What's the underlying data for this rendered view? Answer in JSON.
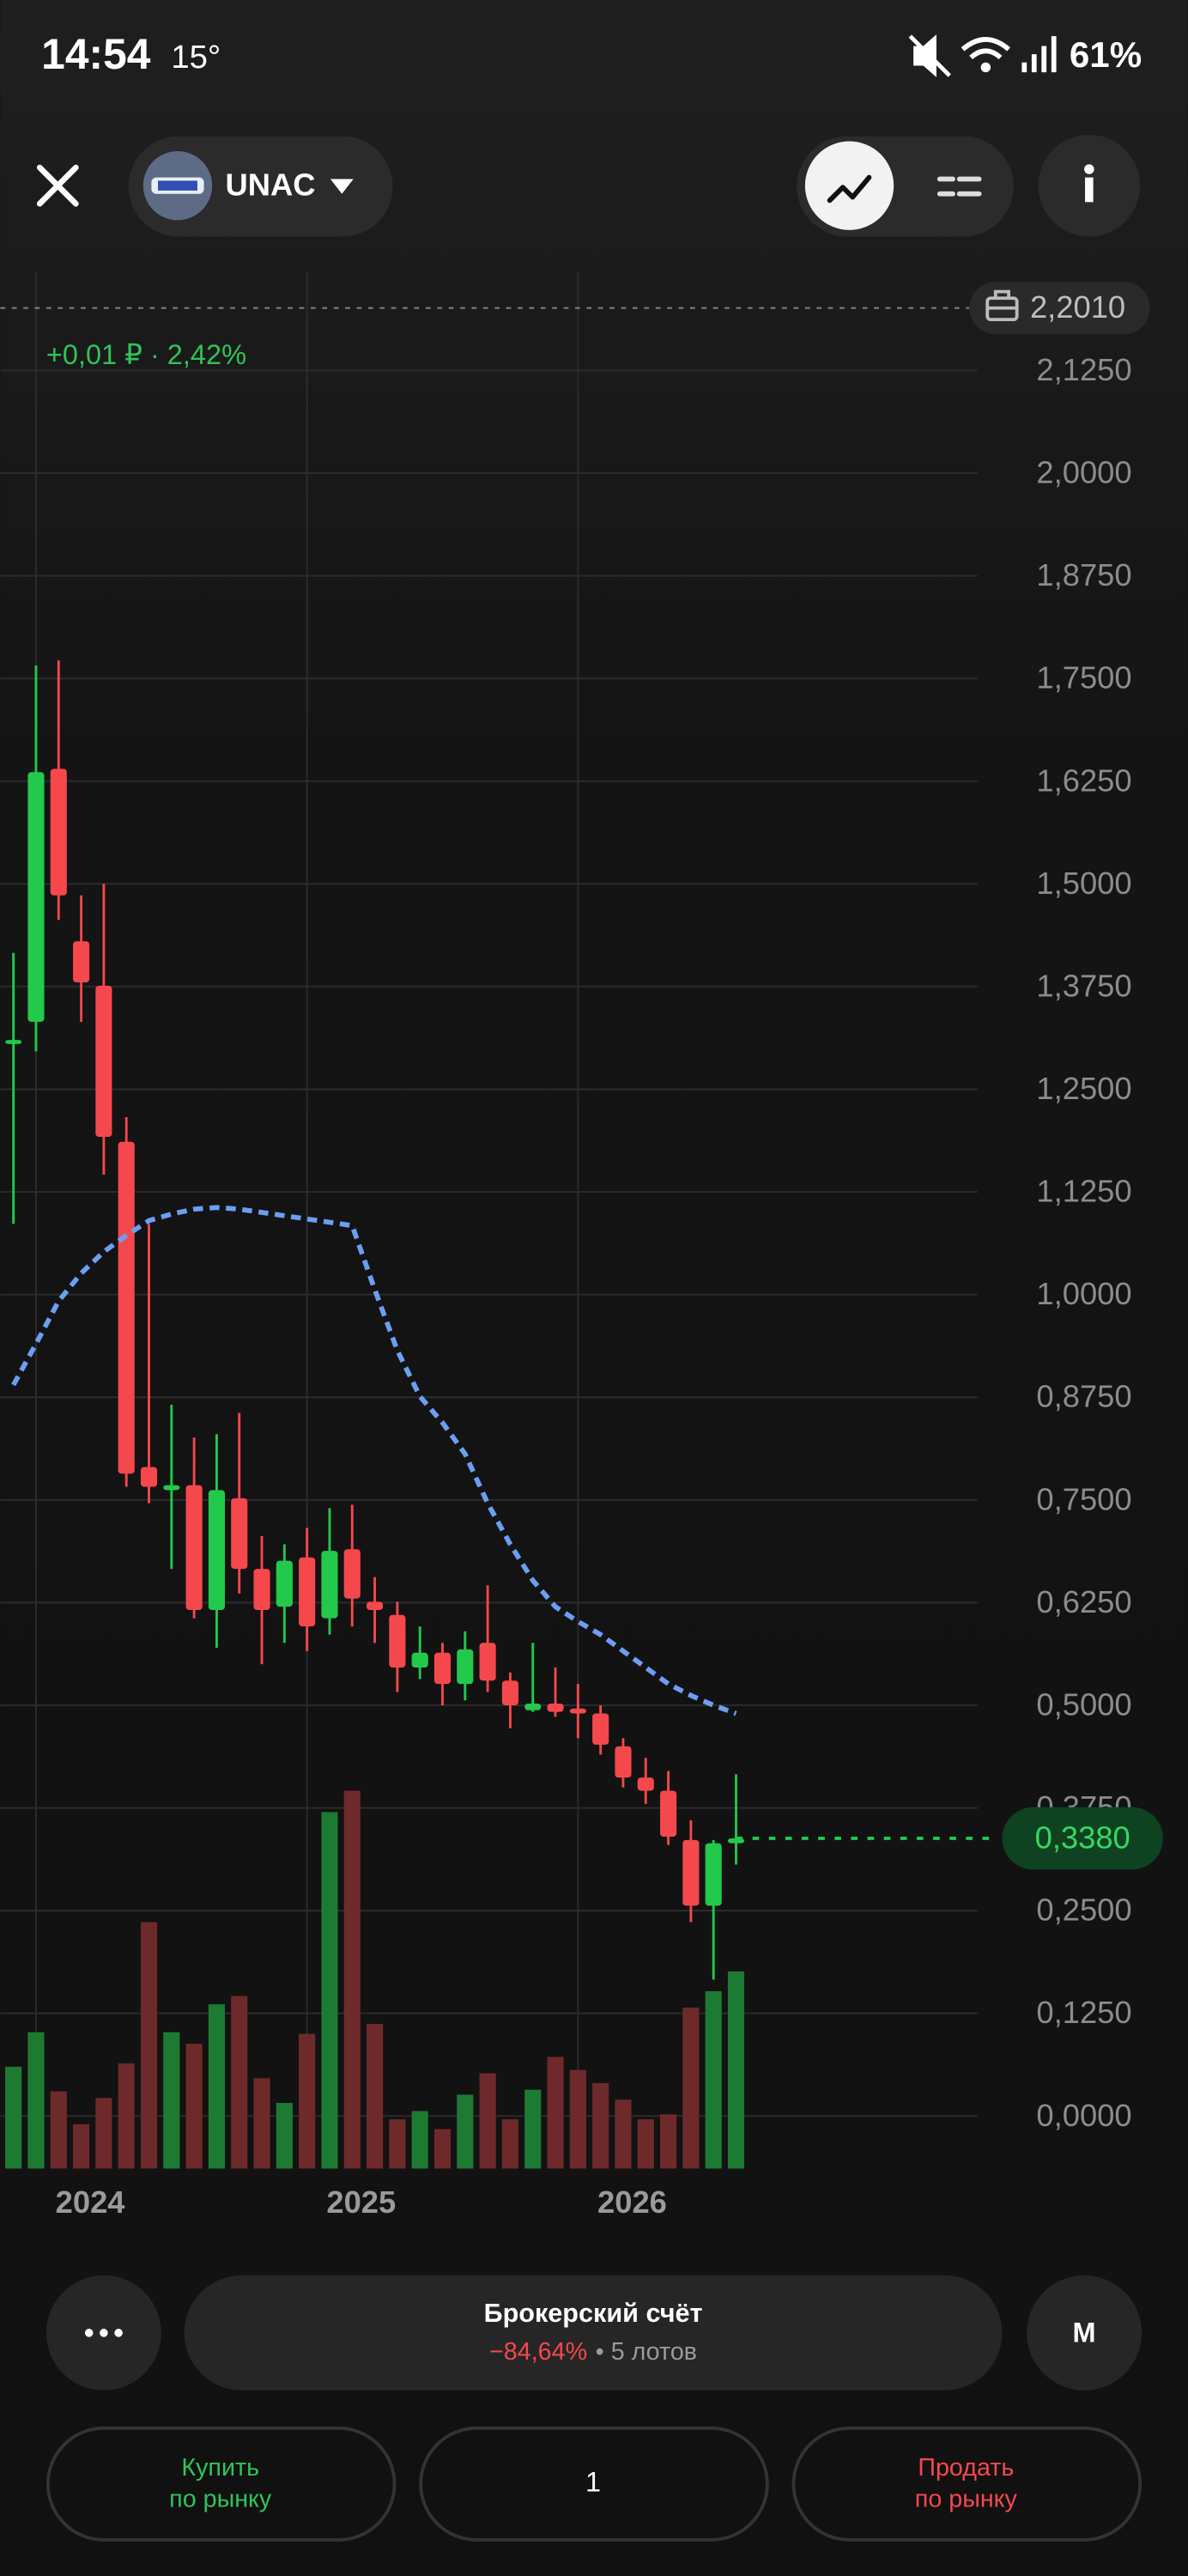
{
  "status_bar": {
    "time": "14:54",
    "temperature": "15°",
    "battery": "61%"
  },
  "header": {
    "ticker": "UNAC"
  },
  "chart_data": {
    "type": "candlestick",
    "change_label": "+0,01 ₽ · 2,42%",
    "categories": [
      null,
      "2024",
      null,
      null,
      null,
      null,
      null,
      null,
      null,
      null,
      null,
      null,
      null,
      "2025",
      null,
      null,
      null,
      null,
      null,
      null,
      null,
      null,
      null,
      null,
      null,
      "2026",
      null,
      null,
      null,
      null,
      null,
      null,
      null
    ],
    "open": [
      1.305,
      1.332,
      1.64,
      1.43,
      1.376,
      1.186,
      0.79,
      0.762,
      0.768,
      0.616,
      0.752,
      0.666,
      0.62,
      0.68,
      0.606,
      0.69,
      0.626,
      0.61,
      0.546,
      0.564,
      0.526,
      0.576,
      0.53,
      0.494,
      0.502,
      0.496,
      0.49,
      0.45,
      0.412,
      0.396,
      0.336,
      0.256,
      0.332
    ],
    "high": [
      1.416,
      1.766,
      1.772,
      1.486,
      1.5,
      1.216,
      1.086,
      0.866,
      0.826,
      0.83,
      0.856,
      0.706,
      0.696,
      0.716,
      0.74,
      0.744,
      0.656,
      0.626,
      0.596,
      0.576,
      0.59,
      0.646,
      0.54,
      0.576,
      0.546,
      0.526,
      0.5,
      0.46,
      0.436,
      0.42,
      0.36,
      0.336,
      0.416
    ],
    "low": [
      1.086,
      1.296,
      1.456,
      1.332,
      1.146,
      0.766,
      0.746,
      0.666,
      0.606,
      0.57,
      0.636,
      0.55,
      0.576,
      0.566,
      0.586,
      0.596,
      0.576,
      0.516,
      0.532,
      0.5,
      0.506,
      0.516,
      0.472,
      0.492,
      0.486,
      0.46,
      0.44,
      0.4,
      0.38,
      0.33,
      0.236,
      0.166,
      0.306
    ],
    "close": [
      1.31,
      1.636,
      1.486,
      1.38,
      1.192,
      0.782,
      0.766,
      0.768,
      0.616,
      0.762,
      0.666,
      0.616,
      0.676,
      0.596,
      0.688,
      0.63,
      0.616,
      0.546,
      0.564,
      0.526,
      0.568,
      0.53,
      0.5,
      0.502,
      0.492,
      0.49,
      0.452,
      0.412,
      0.396,
      0.34,
      0.256,
      0.332,
      0.338
    ],
    "volume": [
      62,
      83,
      47,
      27,
      43,
      64,
      150,
      83,
      76,
      100,
      105,
      55,
      40,
      82,
      217,
      230,
      88,
      30,
      35,
      24,
      45,
      58,
      30,
      48,
      68,
      60,
      52,
      42,
      30,
      33,
      98,
      108,
      120
    ],
    "moving_average": {
      "color": "#6b9ff2",
      "values": [
        0.89,
        0.94,
        0.992,
        1.026,
        1.052,
        1.072,
        1.09,
        1.098,
        1.104,
        1.106,
        1.104,
        1.1,
        1.096,
        1.092,
        1.088,
        1.084,
        1.006,
        0.932,
        0.876,
        0.844,
        0.806,
        0.746,
        0.696,
        0.652,
        0.62,
        0.602,
        0.586,
        0.566,
        0.546,
        0.526,
        0.512,
        0.5,
        0.49
      ]
    },
    "up_color": "#22c94b",
    "down_color": "#f5484c",
    "volume_up_color": "#1d7a33",
    "volume_down_color": "#6e2a2b",
    "ylim": [
      -0.064,
      2.246
    ],
    "yticks": [
      {
        "value": 0,
        "label": "0,0000"
      },
      {
        "value": 0.125,
        "label": "0,1250"
      },
      {
        "value": 0.25,
        "label": "0,2500"
      },
      {
        "value": 0.375,
        "label": "0,3750"
      },
      {
        "value": 0.5,
        "label": "0,5000"
      },
      {
        "value": 0.625,
        "label": "0,6250"
      },
      {
        "value": 0.75,
        "label": "0,7500"
      },
      {
        "value": 0.875,
        "label": "0,8750"
      },
      {
        "value": 1,
        "label": "1,0000"
      },
      {
        "value": 1.125,
        "label": "1,1250"
      },
      {
        "value": 1.25,
        "label": "1,2500"
      },
      {
        "value": 1.375,
        "label": "1,3750"
      },
      {
        "value": 1.5,
        "label": "1,5000"
      },
      {
        "value": 1.625,
        "label": "1,6250"
      },
      {
        "value": 1.75,
        "label": "1,7500"
      },
      {
        "value": 1.875,
        "label": "1,8750"
      },
      {
        "value": 2,
        "label": "2,0000"
      },
      {
        "value": 2.125,
        "label": "2,1250"
      }
    ],
    "grid": true,
    "position_price": {
      "value": 2.201,
      "label": "2,2010"
    },
    "last_price": {
      "value": 0.338,
      "label": "0,3380"
    }
  },
  "account": {
    "title": "Брокерский счёт",
    "change": "−84,64%",
    "lots": "• 5 лотов"
  },
  "interval": "M",
  "quantity": 1,
  "buy": {
    "line1": "Купить",
    "line2": "по рынку"
  },
  "sell": {
    "line1": "Продать",
    "line2": "по рынку"
  }
}
